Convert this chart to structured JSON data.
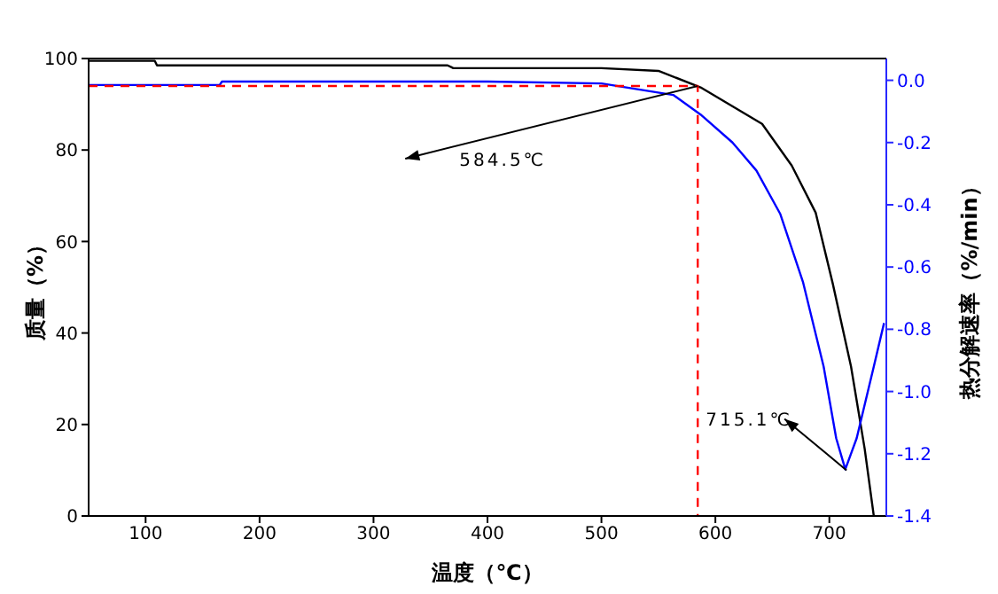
{
  "chart_data": {
    "type": "line",
    "xlabel": "温度（℃）",
    "ylabel": "质量（%）",
    "y2label": "热分解速率（%/min）",
    "xlim": [
      50,
      750
    ],
    "xticks": [
      100,
      200,
      300,
      400,
      500,
      600,
      700
    ],
    "ylim": [
      0,
      100
    ],
    "yticks": [
      0,
      20,
      40,
      60,
      80,
      100
    ],
    "y2lim": [
      -1.4,
      0.07
    ],
    "y2ticks": [
      {
        "value": 0,
        "label": "0.0"
      },
      -0.2,
      -0.4,
      -0.6,
      -0.8,
      {
        "value": -1,
        "label": "-1.0"
      },
      -1.2,
      -1.4
    ],
    "grid": false,
    "marker": "none",
    "series": [
      {
        "color": "#000000",
        "x": [
          50,
          108,
          110,
          365,
          370,
          500,
          550,
          587,
          641,
          667,
          688,
          703,
          719,
          731,
          739
        ],
        "values": [
          99.5,
          99.5,
          98.5,
          98.5,
          97.9,
          97.9,
          97.3,
          93.7,
          85.7,
          76.6,
          66.3,
          50.8,
          32.7,
          14.7,
          0
        ]
      },
      {
        "color": "#0000ff",
        "axis": "y2",
        "x": [
          50,
          165,
          167,
          400,
          500,
          563,
          587,
          615,
          636,
          657,
          677,
          695,
          706,
          714,
          724,
          739,
          748
        ],
        "values": [
          -0.015,
          -0.015,
          -0.004,
          -0.004,
          -0.01,
          -0.047,
          -0.11,
          -0.2,
          -0.29,
          -0.43,
          -0.65,
          -0.92,
          -1.15,
          -1.25,
          -1.15,
          -0.92,
          -0.78
        ]
      },
      {
        "color": "#ff0000",
        "line_style": "dashed",
        "x": [
          50,
          584.5,
          584.5
        ],
        "values": [
          94,
          94,
          0
        ]
      }
    ],
    "annotations": [
      "584.5℃",
      {
        "text": "715.1℃",
        "x": 715.1,
        "y": 10
      }
    ]
  }
}
